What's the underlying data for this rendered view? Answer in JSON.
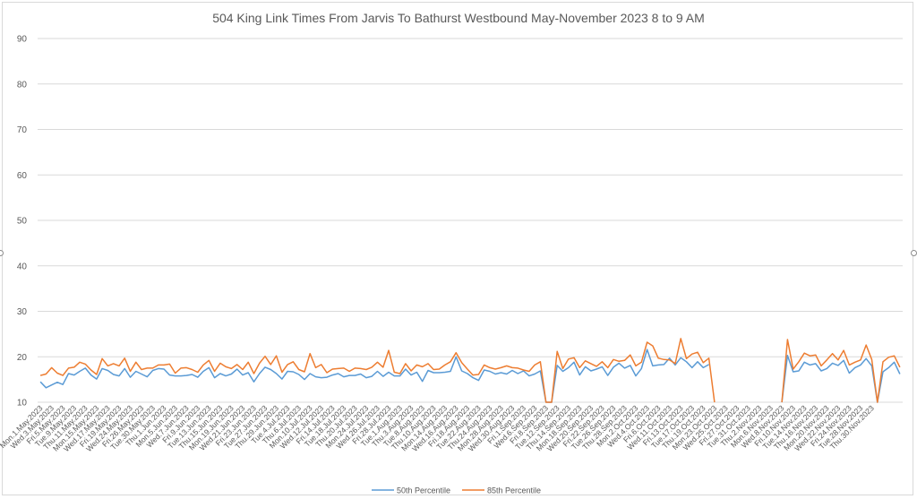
{
  "chart_data": {
    "type": "line",
    "title": "504 King Link Times From Jarvis To Bathurst Westbound May-November 2023 8 to 9 AM",
    "xlabel": "",
    "ylabel": "",
    "ylim": [
      10,
      90
    ],
    "yticks": [
      10,
      20,
      30,
      40,
      50,
      60,
      70,
      80,
      90
    ],
    "grid": true,
    "legend": "bottom",
    "colors": {
      "p50": "#5b9bd5",
      "p85": "#ed7d31",
      "grid": "#d9d9d9",
      "text": "#595959"
    },
    "tick_labels": [
      "Mon.1.May.2023",
      "Wed.3.May.2023",
      "Fri.5.May.2023",
      "Tue.9.May.2023",
      "Thu.11.May.2023",
      "Mon.15.May.2023",
      "Wed.17.May.2023",
      "Fri.19.May.2023",
      "Wed.24.May.2023",
      "Fri.26.May.2023",
      "Tue.30.May.2023",
      "Thu.1.Jun.2023",
      "Mon.5.Jun.2023",
      "Wed.7.Jun.2023",
      "Fri.9.Jun.2023",
      "Tue.13.Jun.2023",
      "Thu.15.Jun.2023",
      "Mon.19.Jun.2023",
      "Wed.21.Jun.2023",
      "Fri.23.Jun.2023",
      "Tue.27.Jun.2023",
      "Thu.29.Jun.2023",
      "Tue.4.Jul.2023",
      "Thu.6.Jul.2023",
      "Mon.10.Jul.2023",
      "Wed.12.Jul.2023",
      "Fri.14.Jul.2023",
      "Tue.18.Jul.2023",
      "Thu.20.Jul.2023",
      "Mon.24.Jul.2023",
      "Wed.26.Jul.2023",
      "Fri.28.Jul.2023",
      "Tue.1.Aug.2023",
      "Thu.3.Aug.2023",
      "Tue.8.Aug.2023",
      "Thu.10.Aug.2023",
      "Mon.14.Aug.2023",
      "Wed.16.Aug.2023",
      "Fri.18.Aug.2023",
      "Tue.22.Aug.2023",
      "Thu.24.Aug.2023",
      "Mon.28.Aug.2023",
      "Wed.30.Aug.2023",
      "Fri.1.Sep.2023",
      "Wed.6.Sep.2023",
      "Fri.8.Sep.2023",
      "Tue.12.Sep.2023",
      "Thu.14.Sep.2023",
      "Mon.18.Sep.2023",
      "Wed.20.Sep.2023",
      "Fri.22.Sep.2023",
      "Tue.26.Sep.2023",
      "Thu.28.Sep.2023",
      "Mon.2.Oct.2023",
      "Wed.4.Oct.2023",
      "Fri.6.Oct.2023",
      "Wed.11.Oct.2023",
      "Fri.13.Oct.2023",
      "Tue.17.Oct.2023",
      "Thu.19.Oct.2023",
      "Mon.23.Oct.2023",
      "Wed.25.Oct.2023",
      "Fri.27.Oct.2023",
      "Tue.31.Oct.2023",
      "Thu.2.Nov.2023",
      "Mon.6.Nov.2023",
      "Wed.8.Nov.2023",
      "Fri.10.Nov.2023",
      "Tue.14.Nov.2023",
      "Thu.16.Nov.2023",
      "Mon.20.Nov.2023",
      "Wed.22.Nov.2023",
      "Fri.24.Nov.2023",
      "Tue.28.Nov.2023",
      "Thu.30.Nov.2023"
    ],
    "series": [
      {
        "name": "50th Percentile",
        "color": "#5b9bd5",
        "values": [
          14.5,
          13.2,
          13.8,
          14.4,
          13.9,
          16.3,
          16.0,
          16.8,
          17.5,
          16.0,
          15.1,
          17.4,
          17.0,
          16.1,
          15.8,
          17.4,
          15.5,
          16.8,
          16.2,
          15.6,
          17.0,
          17.4,
          17.3,
          16.0,
          15.8,
          15.8,
          15.9,
          16.1,
          15.5,
          16.8,
          17.6,
          15.4,
          16.3,
          15.8,
          16.2,
          17.3,
          16.0,
          16.5,
          14.5,
          16.3,
          17.7,
          17.2,
          16.3,
          15.1,
          16.8,
          16.7,
          16.1,
          15.0,
          16.3,
          15.6,
          15.4,
          15.5,
          16.0,
          16.3,
          15.6,
          15.9,
          15.9,
          16.2,
          15.4,
          15.7,
          16.8,
          15.7,
          16.6,
          15.8,
          15.8,
          17.3,
          16.0,
          16.6,
          14.6,
          17.0,
          16.5,
          16.5,
          16.6,
          16.8,
          20.0,
          16.9,
          16.3,
          15.4,
          14.8,
          17.1,
          16.8,
          16.2,
          16.5,
          16.2,
          17.0,
          16.3,
          16.9,
          15.8,
          16.2,
          16.9,
          0,
          0,
          18.1,
          16.8,
          17.6,
          18.8,
          16.0,
          17.8,
          16.9,
          17.3,
          17.8,
          15.9,
          17.7,
          18.6,
          17.5,
          18.1,
          15.8,
          17.4,
          21.6,
          18.0,
          18.2,
          18.3,
          19.7,
          18.2,
          19.8,
          18.9,
          17.6,
          18.9,
          17.6,
          18.3,
          null,
          null,
          null,
          null,
          null,
          null,
          null,
          null,
          null,
          null,
          null,
          null,
          0,
          20.3,
          16.7,
          16.9,
          18.8,
          18.2,
          18.5,
          16.9,
          17.4,
          18.6,
          18.1,
          19.2,
          16.4,
          17.6,
          18.2,
          19.6,
          18.0,
          0,
          16.7,
          17.6,
          18.8,
          16.2
        ],
        "gaps": [
          [
            90,
            91
          ],
          [
            124,
            135
          ],
          [
            152,
            152
          ]
        ]
      },
      {
        "name": "85th Percentile",
        "color": "#ed7d31",
        "values": [
          15.9,
          16.2,
          17.6,
          16.4,
          15.9,
          17.5,
          17.7,
          18.8,
          18.4,
          17.1,
          16.1,
          19.6,
          18.0,
          18.5,
          18.0,
          19.7,
          16.8,
          18.8,
          17.2,
          17.5,
          17.5,
          18.2,
          18.2,
          18.4,
          16.4,
          17.5,
          17.6,
          17.2,
          16.6,
          18.2,
          19.2,
          16.8,
          18.6,
          17.8,
          17.4,
          18.3,
          17.2,
          18.8,
          16.3,
          18.6,
          20.1,
          18.3,
          20.2,
          16.6,
          18.3,
          18.9,
          17.2,
          16.7,
          20.7,
          17.6,
          18.3,
          16.5,
          17.3,
          17.4,
          17.5,
          16.8,
          17.5,
          17.4,
          17.2,
          17.7,
          18.8,
          17.7,
          21.4,
          16.6,
          16.3,
          18.5,
          16.9,
          18.2,
          17.8,
          18.5,
          17.2,
          17.3,
          18.2,
          18.9,
          20.9,
          18.7,
          17.3,
          16.0,
          16.1,
          18.2,
          17.6,
          17.3,
          17.6,
          18.0,
          17.6,
          17.5,
          17.1,
          16.8,
          18.2,
          18.9,
          0,
          0,
          21.2,
          17.4,
          19.5,
          19.8,
          17.6,
          19.1,
          18.5,
          17.9,
          18.9,
          17.6,
          19.4,
          19.0,
          19.2,
          20.4,
          18.0,
          18.8,
          23.2,
          22.4,
          19.7,
          19.4,
          19.3,
          18.5,
          24.0,
          19.6,
          20.6,
          21.0,
          18.7,
          19.7,
          0,
          null,
          null,
          null,
          null,
          null,
          null,
          null,
          null,
          null,
          null,
          null,
          0,
          23.8,
          17.3,
          18.9,
          20.8,
          20.2,
          20.4,
          18.0,
          19.3,
          20.7,
          19.3,
          21.4,
          18.2,
          18.8,
          19.3,
          22.6,
          19.4,
          0,
          18.9,
          19.9,
          20.2,
          17.7
        ],
        "gaps": [
          [
            90,
            91
          ],
          [
            124,
            135
          ],
          [
            152,
            152
          ]
        ]
      }
    ]
  },
  "legend": {
    "p50": "50th Percentile",
    "p85": "85th Percentile"
  }
}
